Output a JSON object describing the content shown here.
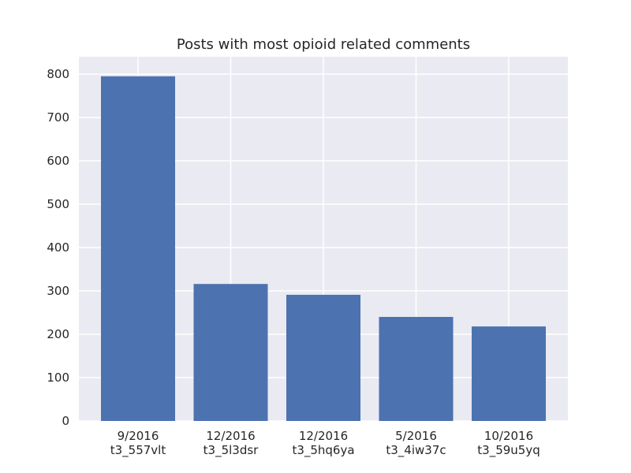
{
  "chart_data": {
    "type": "bar",
    "title": "Posts with most opioid related comments",
    "xlabel": "",
    "ylabel": "",
    "categories": [
      [
        "9/2016",
        "t3_557vlt"
      ],
      [
        "12/2016",
        "t3_5l3dsr"
      ],
      [
        "12/2016",
        "t3_5hq6ya"
      ],
      [
        "5/2016",
        "t3_4iw37c"
      ],
      [
        "10/2016",
        "t3_59u5yq"
      ]
    ],
    "values": [
      795,
      316,
      291,
      240,
      218
    ],
    "ylim": [
      0,
      840
    ],
    "yticks": [
      0,
      100,
      200,
      300,
      400,
      500,
      600,
      700,
      800
    ],
    "grid": true,
    "legend": "none",
    "colors": {
      "bar": "#4c72b0",
      "plot_background": "#eaeaf2",
      "grid": "#ffffff",
      "text": "#262626"
    }
  }
}
